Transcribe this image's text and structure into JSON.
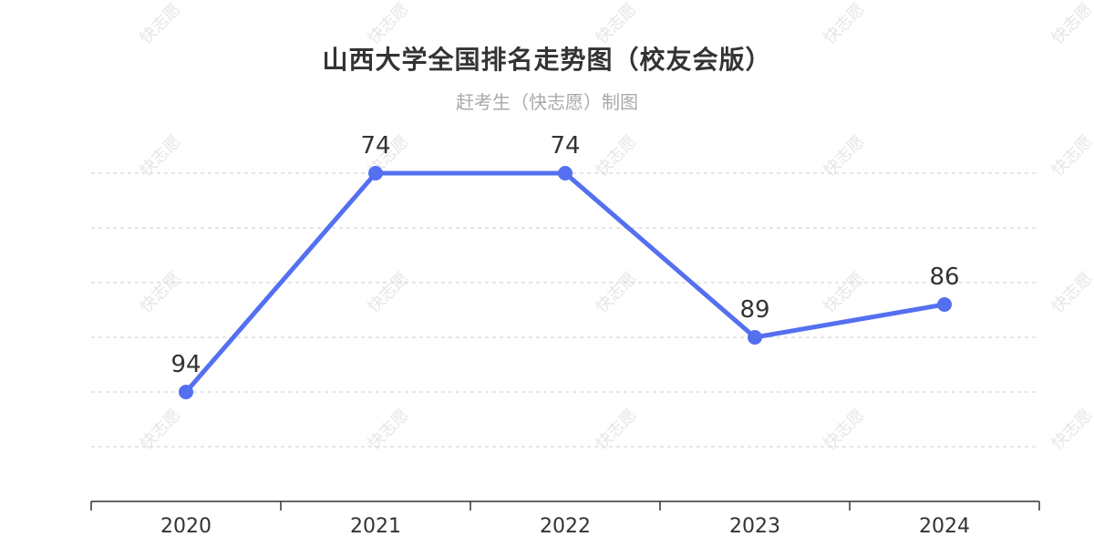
{
  "chart_data": {
    "type": "line",
    "title": "山西大学全国排名走势图（校友会版）",
    "subtitle": "赶考生（快志愿）制图",
    "watermark": "快志愿",
    "categories": [
      "2020",
      "2021",
      "2022",
      "2023",
      "2024"
    ],
    "series": [
      {
        "values": [
          94,
          74,
          74,
          89,
          86
        ],
        "color": "#5470f0"
      }
    ],
    "y_inverted": true,
    "ylim": [
      69,
      104
    ],
    "grid": true,
    "grid_lines": [
      74,
      79,
      84,
      89,
      94,
      99
    ],
    "legend": "none",
    "xlabel": "",
    "ylabel": ""
  }
}
